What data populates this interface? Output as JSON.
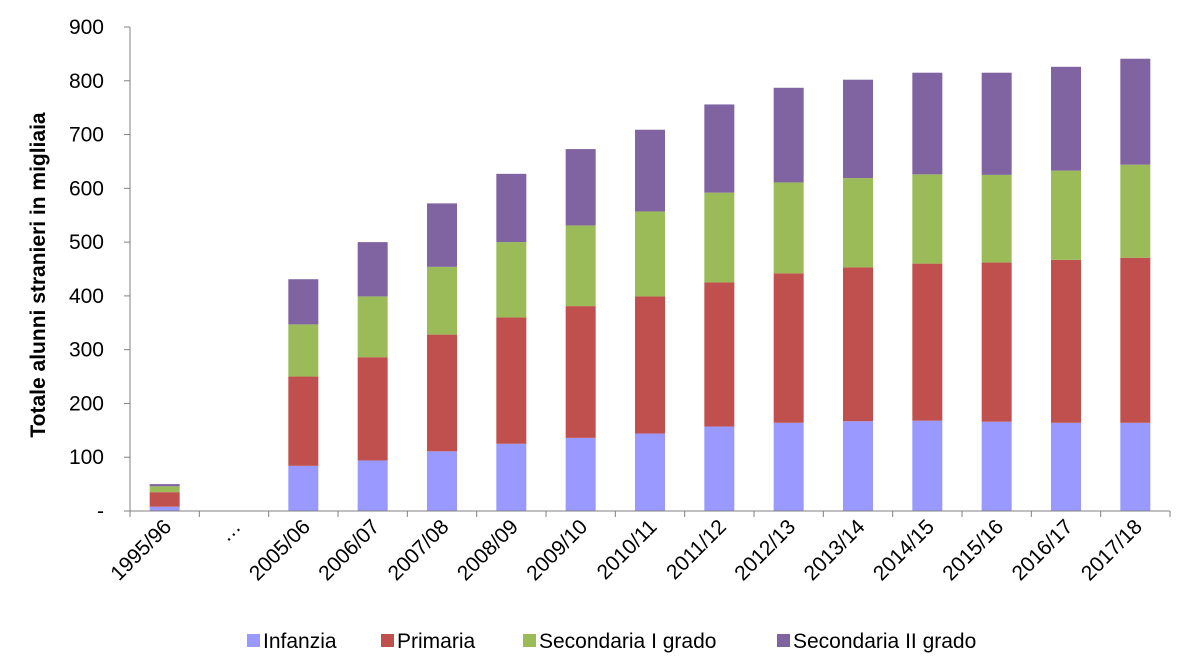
{
  "chart_data": {
    "type": "bar",
    "stacked": true,
    "title": "",
    "xlabel": "",
    "ylabel": "Totale alunni stranieri in migliaia",
    "ylim": [
      0,
      900
    ],
    "yticks": [
      0,
      100,
      200,
      300,
      400,
      500,
      600,
      700,
      800,
      900
    ],
    "ytick_labels": [
      "-",
      "100",
      "200",
      "300",
      "400",
      "500",
      "600",
      "700",
      "800",
      "900"
    ],
    "categories": [
      "1995/96",
      "…",
      "2005/06",
      "2006/07",
      "2007/08",
      "2008/09",
      "2009/10",
      "2010/11",
      "2011/12",
      "2012/13",
      "2013/14",
      "2014/15",
      "2015/16",
      "2016/17",
      "2017/18"
    ],
    "series": [
      {
        "name": "Infanzia",
        "color": "#9999ff",
        "values": [
          8,
          0,
          84,
          94,
          111,
          125,
          136,
          144,
          157,
          164,
          167,
          168,
          166,
          164,
          164
        ]
      },
      {
        "name": "Primaria",
        "color": "#c0504d",
        "values": [
          27,
          0,
          166,
          192,
          217,
          235,
          245,
          255,
          268,
          278,
          286,
          292,
          296,
          303,
          307
        ]
      },
      {
        "name": "Secondaria I grado",
        "color": "#9bbb59",
        "values": [
          11,
          0,
          97,
          113,
          126,
          140,
          150,
          158,
          167,
          169,
          166,
          166,
          163,
          166,
          173
        ]
      },
      {
        "name": "Secondaria II grado",
        "color": "#8064a2",
        "values": [
          4,
          0,
          84,
          101,
          118,
          127,
          142,
          152,
          164,
          176,
          183,
          189,
          190,
          193,
          197
        ]
      }
    ],
    "grid": false,
    "legend_position": "bottom"
  }
}
